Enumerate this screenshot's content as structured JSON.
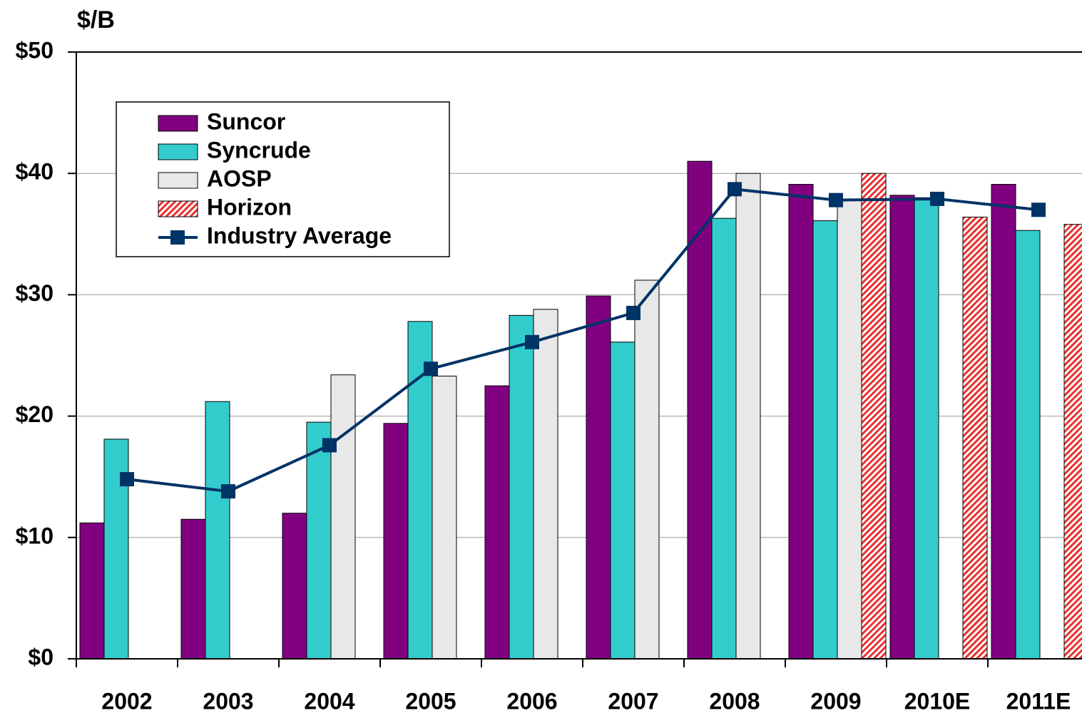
{
  "chart_data": {
    "type": "bar",
    "y_label": "$/B",
    "categories": [
      "2002",
      "2003",
      "2004",
      "2005",
      "2006",
      "2007",
      "2008",
      "2009",
      "2010E",
      "2011E"
    ],
    "series": [
      {
        "name": "Suncor",
        "color": "#800080",
        "values": [
          11.2,
          11.5,
          12.0,
          19.4,
          22.5,
          29.9,
          41.0,
          39.1,
          38.2,
          39.1
        ]
      },
      {
        "name": "Syncrude",
        "color": "#33cccc",
        "values": [
          18.1,
          21.2,
          19.5,
          27.8,
          28.3,
          26.1,
          36.3,
          36.1,
          38.0,
          35.3
        ]
      },
      {
        "name": "AOSP",
        "color": "#e8e8e8",
        "values": [
          null,
          null,
          23.4,
          23.3,
          28.8,
          31.2,
          40.0,
          37.8,
          null,
          null
        ]
      },
      {
        "name": "Horizon",
        "color": "#e83030",
        "pattern": "hatch",
        "values": [
          null,
          null,
          null,
          null,
          null,
          null,
          null,
          40.0,
          36.4,
          35.8
        ]
      },
      {
        "name": "Industry Average",
        "type": "line",
        "color": "#003366",
        "values": [
          14.8,
          13.8,
          17.6,
          23.9,
          26.1,
          28.5,
          38.7,
          37.8,
          37.9,
          37.0
        ]
      }
    ],
    "ylim": [
      0,
      50
    ],
    "yticks": [
      {
        "value": 0,
        "label": "$0"
      },
      {
        "value": 10,
        "label": "$10"
      },
      {
        "value": 20,
        "label": "$20"
      },
      {
        "value": 30,
        "label": "$30"
      },
      {
        "value": 40,
        "label": "$40"
      },
      {
        "value": 50,
        "label": "$50"
      }
    ],
    "grid": true,
    "legend": "upper left"
  }
}
